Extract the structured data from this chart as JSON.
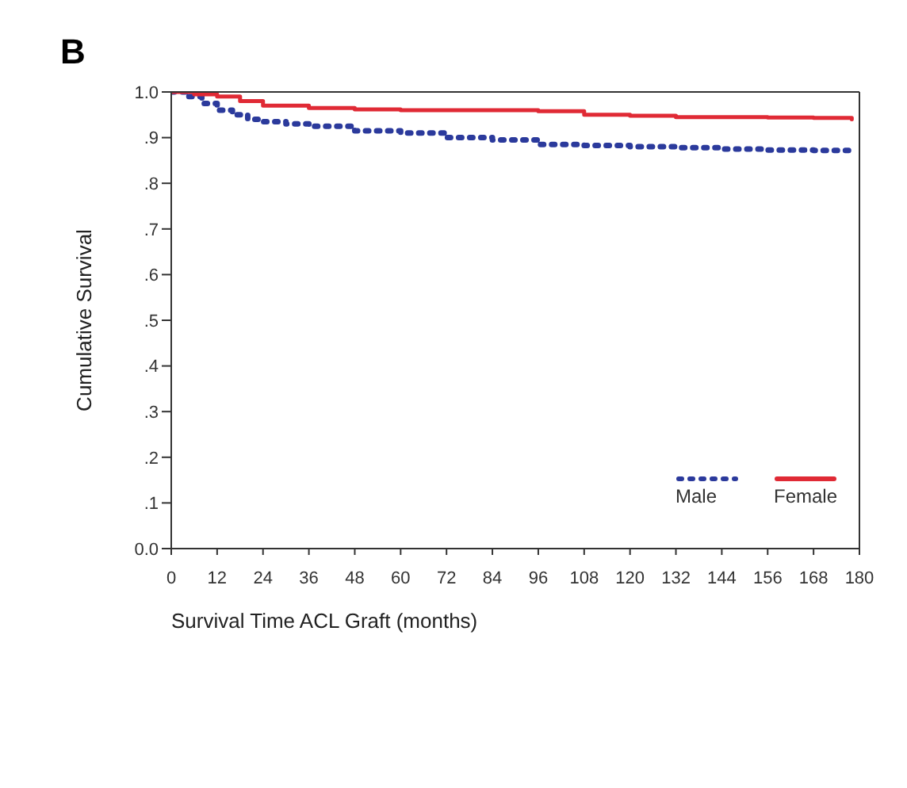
{
  "chart_data": {
    "type": "step",
    "xlabel": "Survival Time ACL Graft (months)",
    "ylabel": "Cumulative Survival",
    "annotations": [
      "B"
    ],
    "xlim": [
      0,
      180
    ],
    "xticks": [
      0,
      12,
      24,
      36,
      48,
      60,
      72,
      84,
      96,
      108,
      120,
      132,
      144,
      156,
      168,
      180
    ],
    "ylim": [
      0,
      1
    ],
    "yticks": [
      {
        "value": 0,
        "label": "0.0"
      },
      {
        "value": 0.1,
        "label": ".1"
      },
      {
        "value": 0.2,
        "label": ".2"
      },
      {
        "value": 0.3,
        "label": ".3"
      },
      {
        "value": 0.4,
        "label": ".4"
      },
      {
        "value": 0.5,
        "label": ".5"
      },
      {
        "value": 0.6,
        "label": ".6"
      },
      {
        "value": 0.7,
        "label": ".7"
      },
      {
        "value": 0.8,
        "label": ".8"
      },
      {
        "value": 0.9,
        "label": ".9"
      },
      {
        "value": 1,
        "label": "1.0"
      }
    ],
    "grid": false,
    "legend": "bottom right",
    "marker": "none",
    "series": [
      {
        "name": "Male",
        "color": "#2b3a9c",
        "line_style": "dotted",
        "x": [
          0,
          4,
          8,
          12,
          16,
          20,
          24,
          30,
          36,
          48,
          60,
          72,
          84,
          96,
          108,
          120,
          132,
          144,
          156,
          168,
          178
        ],
        "values": [
          1,
          0.99,
          0.975,
          0.96,
          0.95,
          0.94,
          0.935,
          0.93,
          0.925,
          0.915,
          0.91,
          0.9,
          0.895,
          0.885,
          0.883,
          0.88,
          0.878,
          0.875,
          0.873,
          0.872,
          0.87
        ]
      },
      {
        "name": "Female",
        "color": "#e02a35",
        "line_style": "solid",
        "x": [
          0,
          6,
          12,
          18,
          24,
          36,
          48,
          60,
          84,
          96,
          108,
          120,
          132,
          144,
          156,
          168,
          178
        ],
        "values": [
          1,
          0.995,
          0.99,
          0.98,
          0.97,
          0.965,
          0.962,
          0.96,
          0.96,
          0.958,
          0.95,
          0.948,
          0.945,
          0.945,
          0.944,
          0.943,
          0.94
        ]
      }
    ]
  }
}
